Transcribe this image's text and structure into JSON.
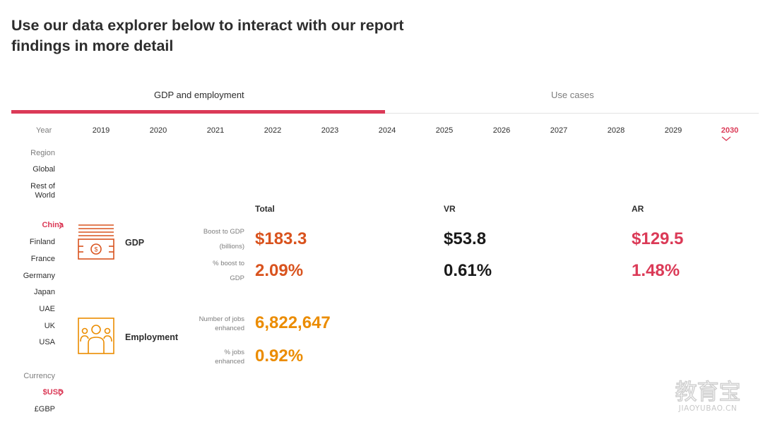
{
  "title": "Use our data explorer below to interact with our report findings in more detail",
  "tabs": [
    {
      "label": "GDP and employment",
      "active": true
    },
    {
      "label": "Use cases",
      "active": false
    }
  ],
  "year": {
    "label": "Year",
    "options": [
      "2019",
      "2020",
      "2021",
      "2022",
      "2023",
      "2024",
      "2025",
      "2026",
      "2027",
      "2028",
      "2029",
      "2030"
    ],
    "selected": "2030"
  },
  "region": {
    "label": "Region",
    "options": [
      "Global",
      "Rest of World",
      "China",
      "Finland",
      "France",
      "Germany",
      "Japan",
      "UAE",
      "UK",
      "USA"
    ],
    "selected": "China"
  },
  "currency": {
    "label": "Currency",
    "options": [
      "$USD",
      "£GBP"
    ],
    "selected": "$USD"
  },
  "columns": {
    "total": "Total",
    "vr": "VR",
    "ar": "AR"
  },
  "gdp": {
    "title": "GDP",
    "icon": "money-icon",
    "boost_label": "Boost to GDP (billions)",
    "boost_label_line1": "Boost to GDP",
    "boost_label_line2": "(billions)",
    "pct_label_line1": "% boost to",
    "pct_label_line2": "GDP",
    "total_boost": "$183.3",
    "vr_boost": "$53.8",
    "ar_boost": "$129.5",
    "total_pct": "2.09%",
    "vr_pct": "0.61%",
    "ar_pct": "1.48%"
  },
  "employment": {
    "title": "Employment",
    "icon": "people-icon",
    "jobs_label_line1": "Number of jobs",
    "jobs_label_line2": "enhanced",
    "pct_label_line1": "% jobs",
    "pct_label_line2": "enhanced",
    "jobs": "6,822,647",
    "pct": "0.92%"
  },
  "colors": {
    "accent": "#db3a57",
    "gdp_orange": "#d9531e",
    "employment_orange": "#eb8c00"
  },
  "watermark": {
    "line1": "教育宝",
    "line2": "JIAOYUBAO.CN"
  }
}
